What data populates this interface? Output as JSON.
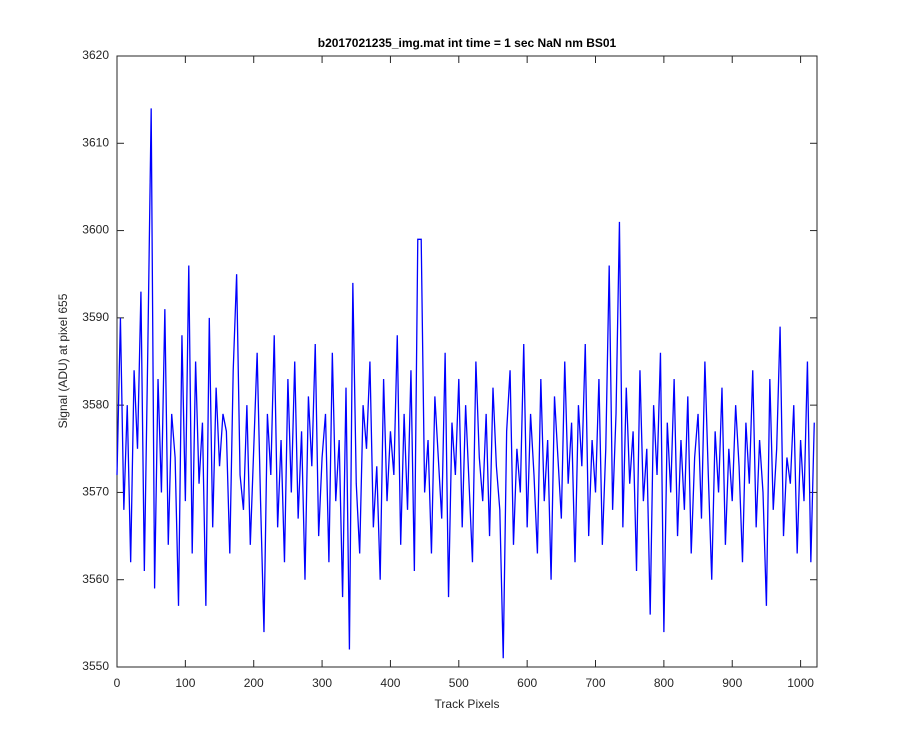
{
  "chart_data": {
    "type": "line",
    "title": "b2017021235_img.mat int time = 1 sec  NaN nm BS01",
    "x_label": "Track Pixels",
    "y_label": "Signal (ADU) at pixel 655",
    "xlim": [
      0,
      1024
    ],
    "ylim": [
      3550,
      3620
    ],
    "xticks": [
      0,
      100,
      200,
      300,
      400,
      500,
      600,
      700,
      800,
      900,
      1000
    ],
    "yticks": [
      3550,
      3560,
      3570,
      3580,
      3590,
      3600,
      3610,
      3620
    ],
    "x": [
      0,
      5,
      10,
      15,
      20,
      25,
      30,
      35,
      40,
      45,
      50,
      55,
      60,
      65,
      70,
      75,
      80,
      85,
      90,
      95,
      100,
      105,
      110,
      115,
      120,
      125,
      130,
      135,
      140,
      145,
      150,
      155,
      160,
      165,
      170,
      175,
      180,
      185,
      190,
      195,
      200,
      205,
      210,
      215,
      220,
      225,
      230,
      235,
      240,
      245,
      250,
      255,
      260,
      265,
      270,
      275,
      280,
      285,
      290,
      295,
      300,
      305,
      310,
      315,
      320,
      325,
      330,
      335,
      340,
      345,
      350,
      355,
      360,
      365,
      370,
      375,
      380,
      385,
      390,
      395,
      400,
      405,
      410,
      415,
      420,
      425,
      430,
      435,
      440,
      445,
      450,
      455,
      460,
      465,
      470,
      475,
      480,
      485,
      490,
      495,
      500,
      505,
      510,
      515,
      520,
      525,
      530,
      535,
      540,
      545,
      550,
      555,
      560,
      565,
      570,
      575,
      580,
      585,
      590,
      595,
      600,
      605,
      610,
      615,
      620,
      625,
      630,
      635,
      640,
      645,
      650,
      655,
      660,
      665,
      670,
      675,
      680,
      685,
      690,
      695,
      700,
      705,
      710,
      715,
      720,
      725,
      730,
      735,
      740,
      745,
      750,
      755,
      760,
      765,
      770,
      775,
      780,
      785,
      790,
      795,
      800,
      805,
      810,
      815,
      820,
      825,
      830,
      835,
      840,
      845,
      850,
      855,
      860,
      865,
      870,
      875,
      880,
      885,
      890,
      895,
      900,
      905,
      910,
      915,
      920,
      925,
      930,
      935,
      940,
      945,
      950,
      955,
      960,
      965,
      970,
      975,
      980,
      985,
      990,
      995,
      1000,
      1005,
      1010,
      1015,
      1020
    ],
    "series": [
      {
        "color": "#0000ff",
        "values": [
          3572,
          3590,
          3568,
          3580,
          3562,
          3584,
          3575,
          3593,
          3561,
          3586,
          3614,
          3559,
          3583,
          3570,
          3591,
          3564,
          3579,
          3574,
          3557,
          3588,
          3569,
          3596,
          3563,
          3585,
          3571,
          3578,
          3557,
          3590,
          3566,
          3582,
          3573,
          3579,
          3577,
          3563,
          3584,
          3595,
          3572,
          3568,
          3580,
          3564,
          3575,
          3586,
          3569,
          3554,
          3579,
          3572,
          3588,
          3566,
          3576,
          3562,
          3583,
          3570,
          3585,
          3567,
          3577,
          3560,
          3581,
          3573,
          3587,
          3565,
          3574,
          3579,
          3562,
          3586,
          3569,
          3576,
          3558,
          3582,
          3552,
          3594,
          3571,
          3563,
          3580,
          3575,
          3585,
          3566,
          3573,
          3560,
          3583,
          3569,
          3577,
          3572,
          3588,
          3564,
          3579,
          3568,
          3584,
          3561,
          3599,
          3599,
          3570,
          3576,
          3563,
          3581,
          3574,
          3567,
          3586,
          3558,
          3578,
          3572,
          3583,
          3566,
          3580,
          3571,
          3562,
          3585,
          3574,
          3569,
          3579,
          3565,
          3582,
          3573,
          3568,
          3551,
          3577,
          3584,
          3564,
          3575,
          3570,
          3587,
          3566,
          3579,
          3572,
          3563,
          3583,
          3569,
          3576,
          3560,
          3581,
          3574,
          3567,
          3585,
          3571,
          3578,
          3562,
          3580,
          3573,
          3587,
          3565,
          3576,
          3570,
          3583,
          3564,
          3575,
          3596,
          3568,
          3579,
          3601,
          3566,
          3582,
          3571,
          3577,
          3561,
          3584,
          3569,
          3575,
          3556,
          3580,
          3572,
          3586,
          3554,
          3578,
          3570,
          3583,
          3565,
          3576,
          3568,
          3581,
          3563,
          3574,
          3579,
          3567,
          3585,
          3572,
          3560,
          3577,
          3570,
          3582,
          3564,
          3575,
          3569,
          3580,
          3573,
          3562,
          3578,
          3571,
          3584,
          3566,
          3576,
          3570,
          3557,
          3583,
          3568,
          3575,
          3589,
          3565,
          3574,
          3571,
          3580,
          3563,
          3576,
          3569,
          3585,
          3562,
          3578
        ]
      }
    ]
  }
}
